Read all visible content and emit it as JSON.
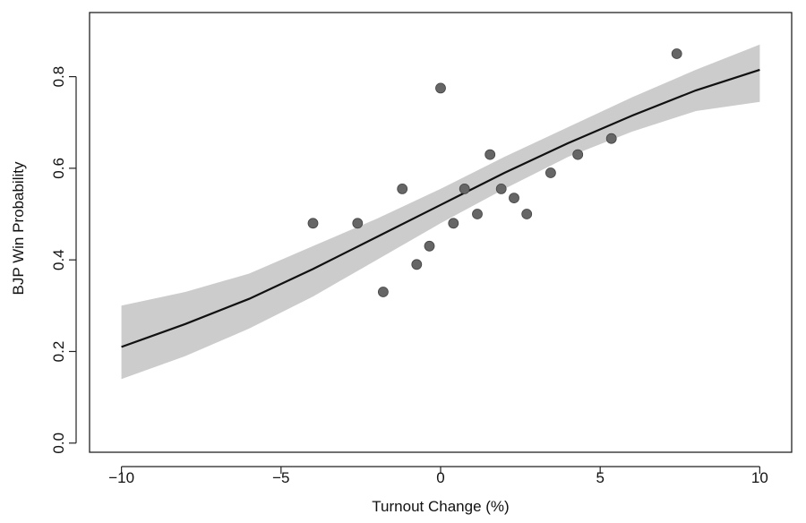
{
  "chart_data": {
    "type": "scatter",
    "title": "",
    "xlabel": "Turnout Change (%)",
    "ylabel": "BJP Win Probability",
    "xlim": [
      -11,
      11
    ],
    "ylim": [
      -0.02,
      0.94
    ],
    "x_ticks": [
      -10,
      -5,
      0,
      5,
      10
    ],
    "x_tick_labels": [
      "−10",
      "−5",
      "0",
      "5",
      "10"
    ],
    "y_ticks": [
      0.0,
      0.2,
      0.4,
      0.6,
      0.8
    ],
    "y_tick_labels": [
      "0.0",
      "0.2",
      "0.4",
      "0.6",
      "0.8"
    ],
    "grid": false,
    "legend": "none",
    "colors": {
      "points": "#666666",
      "point_edge": "#444444",
      "fit_line": "#111111",
      "confidence_band": "#cccccc",
      "frame": "#222222"
    },
    "points": [
      {
        "x": -4.0,
        "y": 0.48
      },
      {
        "x": -2.6,
        "y": 0.48
      },
      {
        "x": -1.8,
        "y": 0.33
      },
      {
        "x": -1.2,
        "y": 0.555
      },
      {
        "x": -0.75,
        "y": 0.39
      },
      {
        "x": -0.35,
        "y": 0.43
      },
      {
        "x": 0.0,
        "y": 0.775
      },
      {
        "x": 0.4,
        "y": 0.48
      },
      {
        "x": 0.75,
        "y": 0.555
      },
      {
        "x": 1.15,
        "y": 0.5
      },
      {
        "x": 1.55,
        "y": 0.63
      },
      {
        "x": 1.9,
        "y": 0.555
      },
      {
        "x": 2.3,
        "y": 0.535
      },
      {
        "x": 2.7,
        "y": 0.5
      },
      {
        "x": 3.45,
        "y": 0.59
      },
      {
        "x": 4.3,
        "y": 0.63
      },
      {
        "x": 5.35,
        "y": 0.665
      },
      {
        "x": 7.4,
        "y": 0.85
      }
    ],
    "fit": {
      "x": [
        -10,
        -8,
        -6,
        -4,
        -2,
        0,
        2,
        4,
        6,
        8,
        10
      ],
      "y": [
        0.21,
        0.26,
        0.315,
        0.38,
        0.45,
        0.52,
        0.59,
        0.655,
        0.715,
        0.77,
        0.815
      ],
      "lower": [
        0.14,
        0.19,
        0.25,
        0.32,
        0.4,
        0.48,
        0.555,
        0.625,
        0.68,
        0.725,
        0.745
      ],
      "upper": [
        0.3,
        0.33,
        0.37,
        0.43,
        0.49,
        0.555,
        0.625,
        0.69,
        0.755,
        0.815,
        0.87
      ]
    }
  }
}
